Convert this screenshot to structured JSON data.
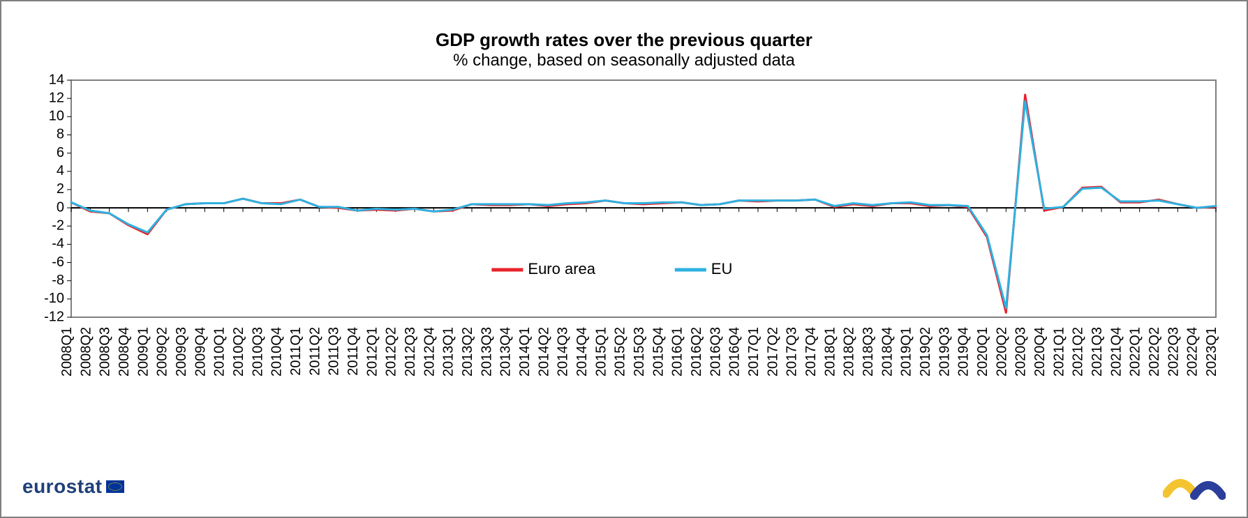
{
  "chart": {
    "type": "line",
    "title": "GDP growth rates over the previous quarter",
    "subtitle": "% change, based on seasonally adjusted data",
    "title_fontsize": 26,
    "subtitle_fontsize": 24,
    "background_color": "#ffffff",
    "plot_border_color": "#808080",
    "plot_border_width": 2,
    "grid": false,
    "y": {
      "min": -12,
      "max": 14,
      "tick_step": 2,
      "ticks": [
        -12,
        -10,
        -8,
        -6,
        -4,
        -2,
        0,
        2,
        4,
        6,
        8,
        10,
        12,
        14
      ],
      "label_fontsize": 20,
      "label_color": "#000000",
      "tick_length": 6
    },
    "x": {
      "categories": [
        "2008Q1",
        "2008Q2",
        "2008Q3",
        "2008Q4",
        "2009Q1",
        "2009Q2",
        "2009Q3",
        "2009Q4",
        "2010Q1",
        "2010Q2",
        "2010Q3",
        "2010Q4",
        "2011Q1",
        "2011Q2",
        "2011Q3",
        "2011Q4",
        "2012Q1",
        "2012Q2",
        "2012Q3",
        "2012Q4",
        "2013Q1",
        "2013Q2",
        "2013Q3",
        "2013Q4",
        "2014Q1",
        "2014Q2",
        "2014Q3",
        "2014Q4",
        "2015Q1",
        "2015Q2",
        "2015Q3",
        "2015Q4",
        "2016Q1",
        "2016Q2",
        "2016Q3",
        "2016Q4",
        "2017Q1",
        "2017Q2",
        "2017Q3",
        "2017Q4",
        "2018Q1",
        "2018Q2",
        "2018Q3",
        "2018Q4",
        "2019Q1",
        "2019Q2",
        "2019Q3",
        "2019Q4",
        "2020Q1",
        "2020Q2",
        "2020Q3",
        "2020Q4",
        "2021Q1",
        "2021Q2",
        "2021Q3",
        "2021Q4",
        "2022Q1",
        "2022Q2",
        "2022Q3",
        "2022Q4",
        "2023Q1"
      ],
      "label_fontsize": 20,
      "label_color": "#000000",
      "label_rotation": -90,
      "tick_length": 6
    },
    "zero_line": {
      "color": "#000000",
      "width": 2
    },
    "legend": {
      "position": "inside-bottom-center",
      "fontsize": 22,
      "items": [
        {
          "key": "euro_area",
          "label": "Euro area",
          "color": "#e8232a"
        },
        {
          "key": "eu",
          "label": "EU",
          "color": "#2eb1e0"
        }
      ],
      "swatch_width": 40,
      "swatch_height": 5
    },
    "series": {
      "euro_area": {
        "label": "Euro area",
        "color": "#e8232a",
        "line_width": 3,
        "values": [
          0.6,
          -0.4,
          -0.6,
          -1.9,
          -2.9,
          -0.2,
          0.4,
          0.5,
          0.5,
          1.0,
          0.5,
          0.5,
          0.9,
          0.1,
          0.0,
          -0.3,
          -0.2,
          -0.3,
          -0.1,
          -0.4,
          -0.3,
          0.4,
          0.3,
          0.3,
          0.4,
          0.2,
          0.4,
          0.5,
          0.8,
          0.5,
          0.4,
          0.5,
          0.6,
          0.3,
          0.4,
          0.8,
          0.7,
          0.8,
          0.8,
          0.9,
          0.1,
          0.4,
          0.2,
          0.5,
          0.5,
          0.2,
          0.3,
          0.1,
          -3.2,
          -11.5,
          12.4,
          -0.3,
          0.1,
          2.2,
          2.3,
          0.6,
          0.6,
          0.9,
          0.4,
          0.0,
          0.1
        ]
      },
      "eu": {
        "label": "EU",
        "color": "#2eb1e0",
        "line_width": 3,
        "values": [
          0.6,
          -0.3,
          -0.6,
          -1.8,
          -2.7,
          -0.2,
          0.4,
          0.5,
          0.5,
          1.0,
          0.5,
          0.4,
          0.9,
          0.1,
          0.1,
          -0.3,
          -0.1,
          -0.2,
          -0.1,
          -0.4,
          -0.2,
          0.4,
          0.4,
          0.4,
          0.4,
          0.3,
          0.5,
          0.6,
          0.8,
          0.5,
          0.5,
          0.6,
          0.6,
          0.3,
          0.4,
          0.8,
          0.8,
          0.8,
          0.8,
          0.9,
          0.2,
          0.5,
          0.3,
          0.5,
          0.6,
          0.3,
          0.3,
          0.2,
          -3.0,
          -11.0,
          11.7,
          -0.1,
          0.1,
          2.1,
          2.2,
          0.7,
          0.7,
          0.8,
          0.4,
          0.0,
          0.2
        ]
      }
    }
  },
  "branding": {
    "left_logo_text": "eurostat",
    "left_logo_color": "#1f3f77",
    "right_logo_colors": {
      "yellow": "#f4c430",
      "blue": "#2b3e9b"
    }
  }
}
